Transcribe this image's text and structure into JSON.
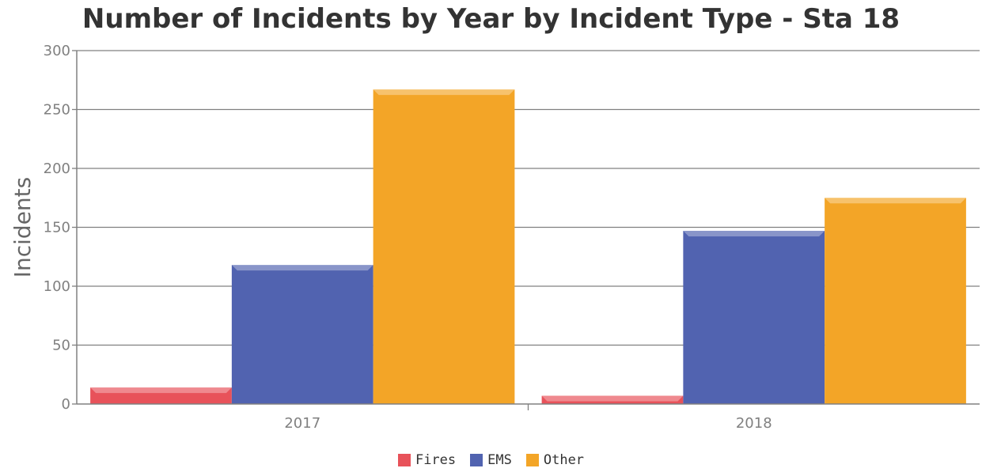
{
  "chart_data": {
    "type": "bar",
    "title": "Number of Incidents by Year by Incident Type - Sta 18",
    "xlabel": "",
    "ylabel": "Incidents",
    "ylim": [
      0,
      300
    ],
    "yticks": [
      0,
      50,
      100,
      150,
      200,
      250,
      300
    ],
    "categories": [
      "2017",
      "2018"
    ],
    "series": [
      {
        "name": "Fires",
        "color": "#e8525a",
        "values": [
          14,
          7
        ]
      },
      {
        "name": "EMS",
        "color": "#5163b0",
        "values": [
          118,
          147
        ]
      },
      {
        "name": "Other",
        "color": "#f3a527",
        "values": [
          267,
          175
        ]
      }
    ],
    "grid": true,
    "legend": "bottom-center"
  }
}
